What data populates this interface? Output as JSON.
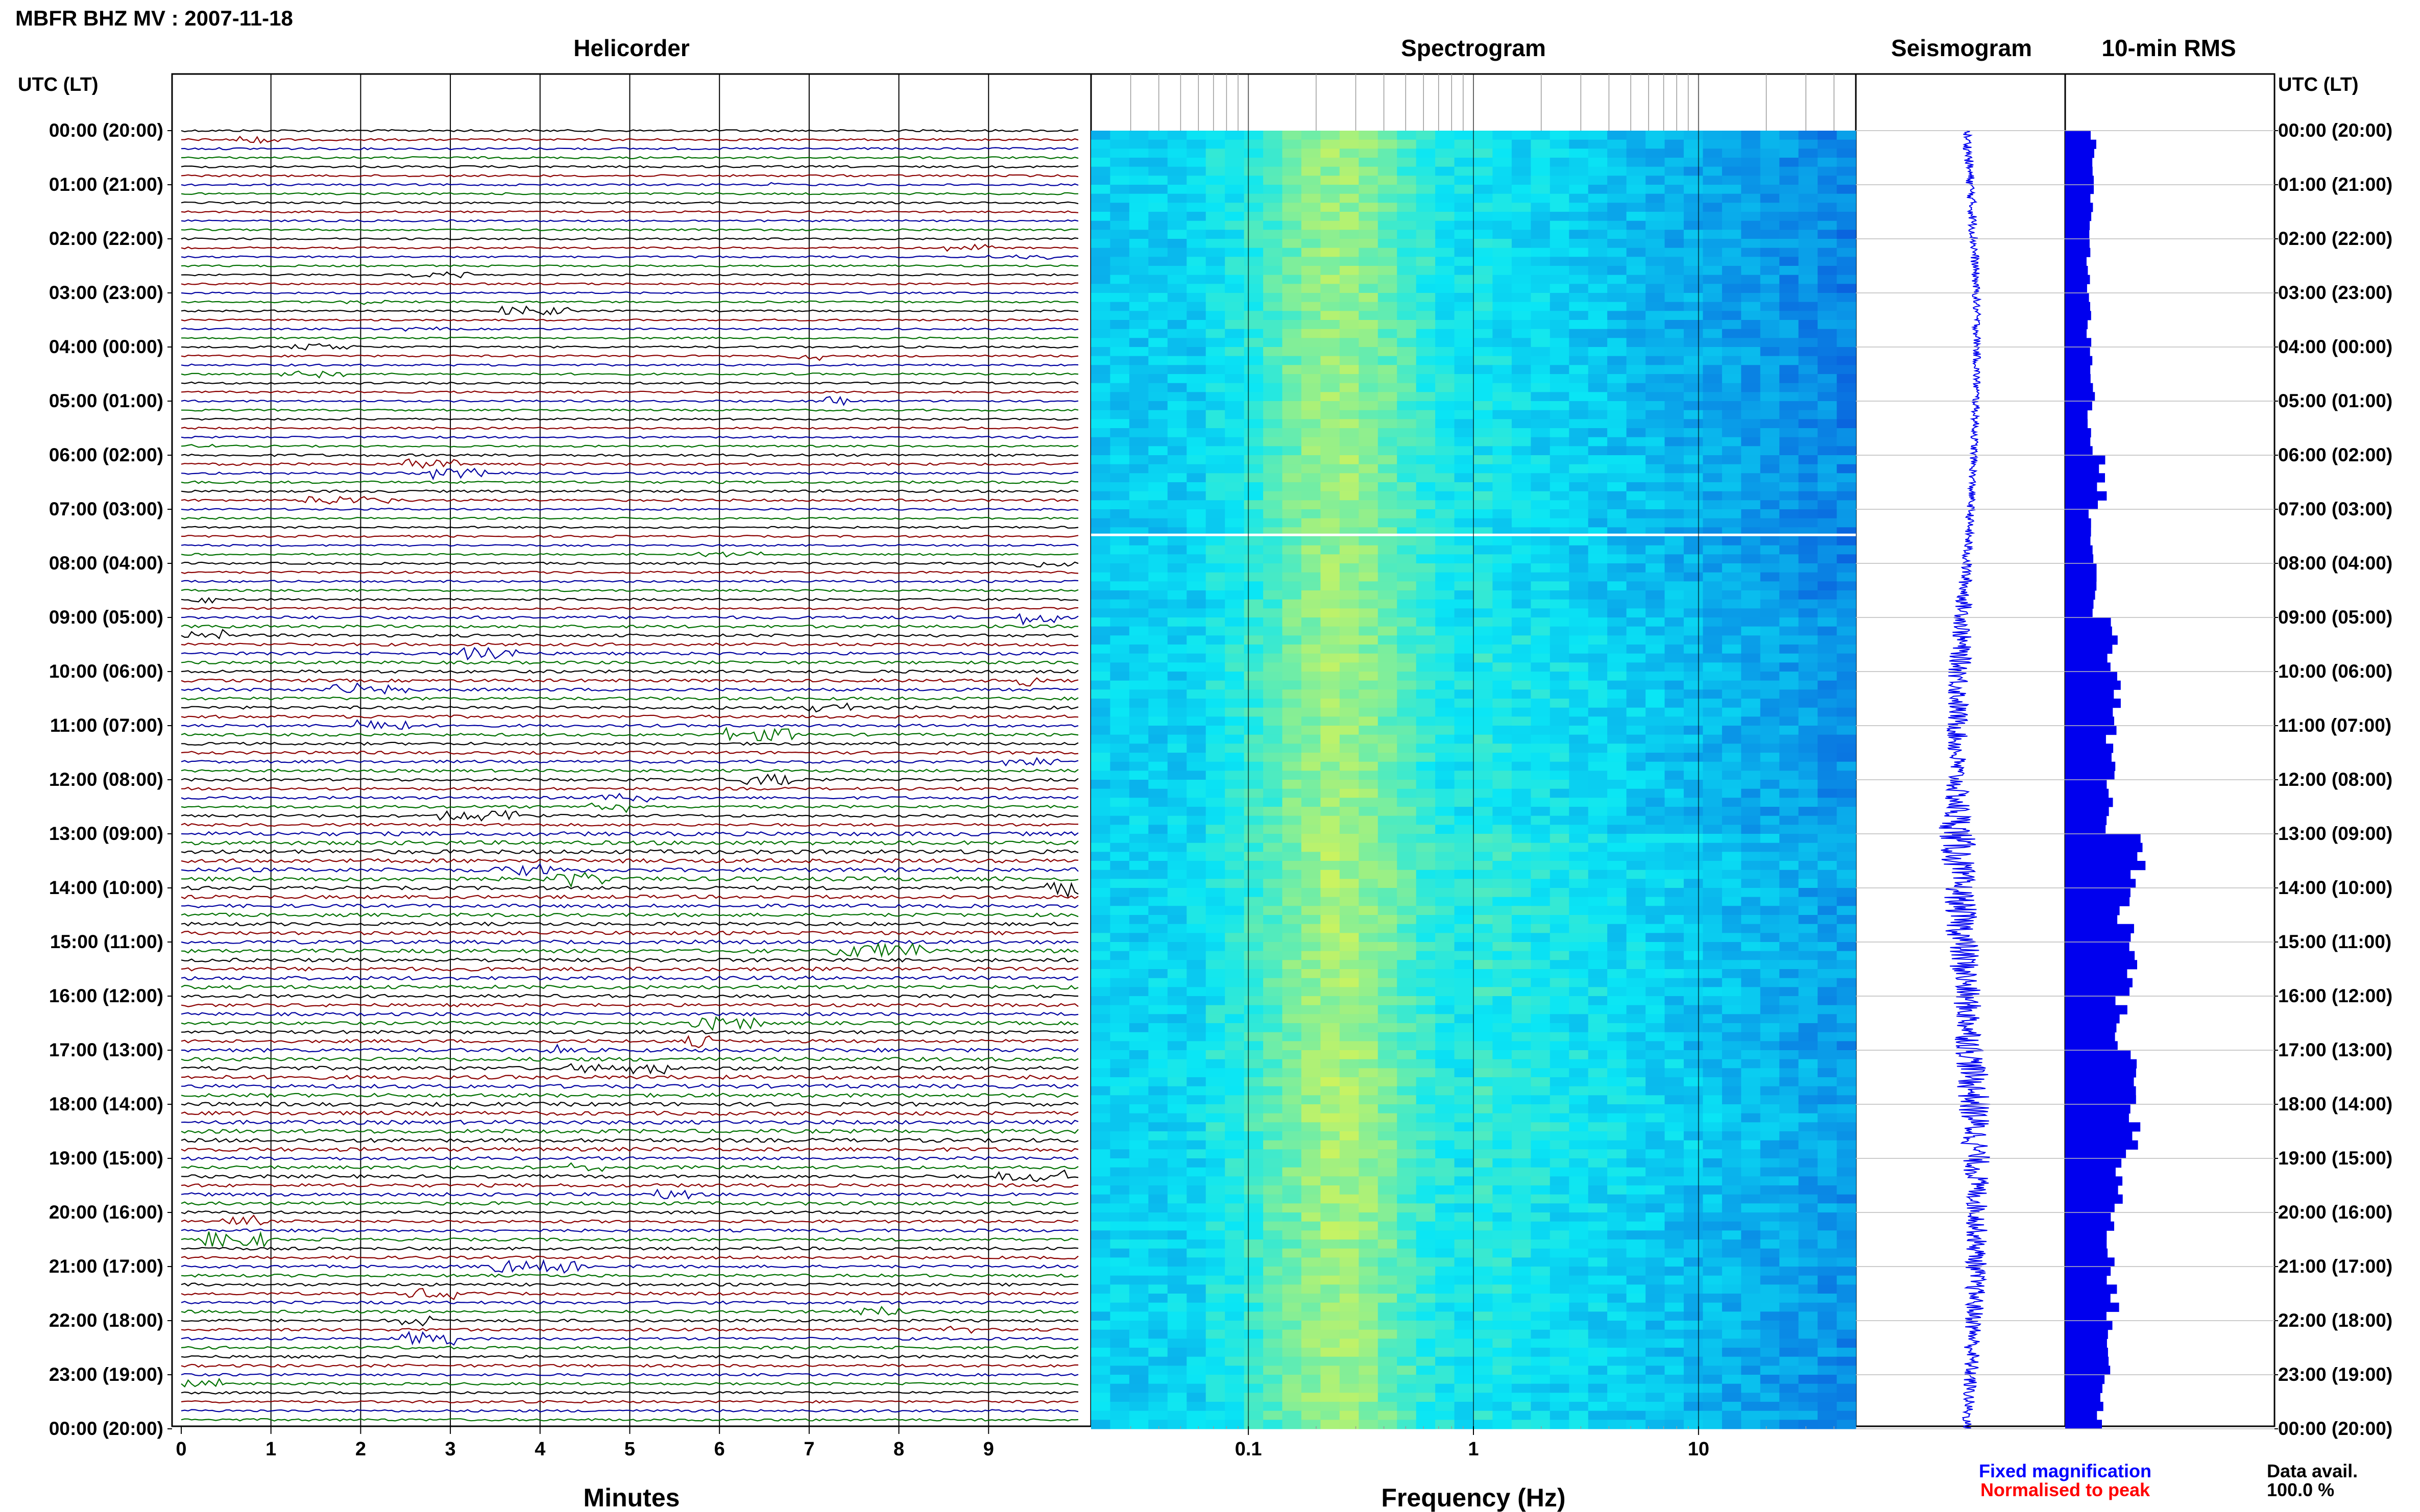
{
  "header": {
    "title": "MBFR BHZ MV : 2007-11-18",
    "left_axis_label": "UTC (LT)",
    "right_axis_label": "UTC (LT)"
  },
  "panels": {
    "helicorder": "Helicorder",
    "spectrogram": "Spectrogram",
    "seismogram": "Seismogram",
    "rms": "10-min RMS"
  },
  "time_labels": [
    "00:00 (20:00)",
    "01:00 (21:00)",
    "02:00 (22:00)",
    "03:00 (23:00)",
    "04:00 (00:00)",
    "05:00 (01:00)",
    "06:00 (02:00)",
    "07:00 (03:00)",
    "08:00 (04:00)",
    "09:00 (05:00)",
    "10:00 (06:00)",
    "11:00 (07:00)",
    "12:00 (08:00)",
    "13:00 (09:00)",
    "14:00 (10:00)",
    "15:00 (11:00)",
    "16:00 (12:00)",
    "17:00 (13:00)",
    "18:00 (14:00)",
    "19:00 (15:00)",
    "20:00 (16:00)",
    "21:00 (17:00)",
    "22:00 (18:00)",
    "23:00 (19:00)",
    "00:00 (20:00)"
  ],
  "footer": {
    "fixed_magnification": "Fixed magnification",
    "normalised_to_peak": "Normalised to peak",
    "data_avail_label": "Data avail.",
    "data_avail_value": "100.0 %"
  },
  "colors": {
    "trace_cycle": [
      "#000000",
      "#8b0000",
      "#0000a0",
      "#007000"
    ],
    "fixed_magnification": "#0000ff",
    "normalised_to_peak": "#ff0000",
    "rms_bars": "#0000ee",
    "seismogram": "#0000ee"
  },
  "chart_data": [
    {
      "type": "line",
      "name": "Helicorder",
      "xlabel": "Minutes",
      "x_ticks": [
        "0",
        "1",
        "2",
        "3",
        "4",
        "5",
        "6",
        "7",
        "8",
        "9"
      ],
      "xlim": [
        0,
        10
      ],
      "rows_per_hour": 6,
      "total_rows": 144,
      "note": "stacked 10-minute seismic traces, one row per 10 minutes over 24 hours"
    },
    {
      "type": "heatmap",
      "name": "Spectrogram",
      "xlabel": "Frequency (Hz)",
      "x_scale": "log",
      "x_ticks": [
        "0.1",
        "1",
        "10"
      ],
      "xlim": [
        0.02,
        50
      ]
    },
    {
      "type": "line",
      "name": "Seismogram",
      "envelope_hours": [
        0,
        1,
        2,
        3,
        4,
        5,
        6,
        7,
        8,
        9,
        10,
        11,
        12,
        13,
        14,
        15,
        16,
        17,
        18,
        19,
        20,
        21,
        22,
        23,
        24
      ],
      "envelope_amplitude": [
        0.06,
        0.06,
        0.06,
        0.05,
        0.05,
        0.05,
        0.05,
        0.05,
        0.07,
        0.12,
        0.15,
        0.14,
        0.13,
        0.25,
        0.2,
        0.22,
        0.18,
        0.2,
        0.22,
        0.18,
        0.14,
        0.14,
        0.12,
        0.1,
        0.06
      ]
    },
    {
      "type": "bar",
      "name": "10-min RMS",
      "orientation": "horizontal",
      "interval_minutes": 10,
      "hourly_max_fraction": [
        0.16,
        0.14,
        0.13,
        0.13,
        0.15,
        0.14,
        0.2,
        0.14,
        0.17,
        0.26,
        0.27,
        0.25,
        0.24,
        0.4,
        0.33,
        0.36,
        0.3,
        0.37,
        0.38,
        0.31,
        0.26,
        0.26,
        0.24,
        0.2
      ]
    }
  ]
}
